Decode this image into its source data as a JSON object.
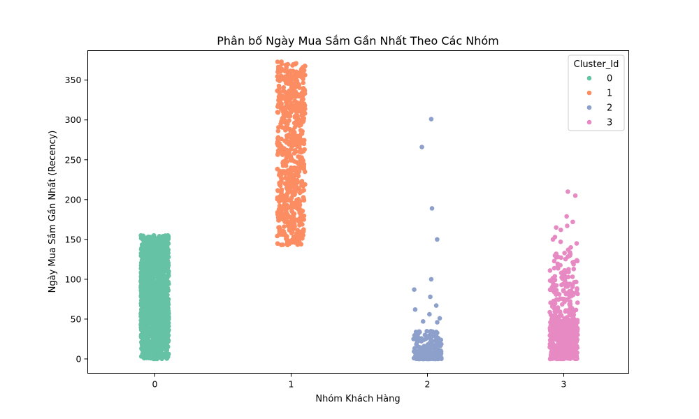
{
  "chart_data": {
    "type": "scatter",
    "subtype": "stripplot",
    "title": "Phân bố Ngày Mua Sắm Gần Nhất Theo Các Nhóm",
    "xlabel": "Nhóm Khách Hàng",
    "ylabel": "Ngày Mua Sắm Gần Nhất (Recency)",
    "categories": [
      "0",
      "1",
      "2",
      "3"
    ],
    "x_ticks": [
      "0",
      "1",
      "2",
      "3"
    ],
    "y_ticks": [
      0,
      50,
      100,
      150,
      200,
      250,
      300,
      350
    ],
    "ylim": [
      -18,
      387
    ],
    "grid": false,
    "legend": {
      "title": "Cluster_Id",
      "placement": "top-right",
      "entries": [
        "0",
        "1",
        "2",
        "3"
      ]
    },
    "series": [
      {
        "category": "0",
        "color": "#66c2a5",
        "range": [
          0,
          155
        ],
        "approx_count": 1400,
        "distribution": "uniform-dense",
        "notable_values": [
          155,
          152,
          150
        ]
      },
      {
        "category": "1",
        "color": "#fc8d62",
        "range": [
          143,
          373
        ],
        "approx_count": 700,
        "distribution": "uniform-dense",
        "notable_values": [
          373,
          370,
          143
        ]
      },
      {
        "category": "2",
        "color": "#8da0cb",
        "range": [
          0,
          301
        ],
        "approx_count": 250,
        "distribution": "concentrated-near-zero",
        "outliers": [
          301,
          266,
          189,
          150,
          100,
          87,
          78,
          67,
          62,
          56,
          51,
          47,
          46
        ]
      },
      {
        "category": "3",
        "color": "#e78ac3",
        "range": [
          0,
          210
        ],
        "approx_count": 600,
        "distribution": "skewed-low",
        "outliers": [
          210,
          205,
          179,
          172,
          167,
          165,
          162,
          153,
          150,
          147,
          145,
          140,
          137
        ]
      }
    ]
  }
}
